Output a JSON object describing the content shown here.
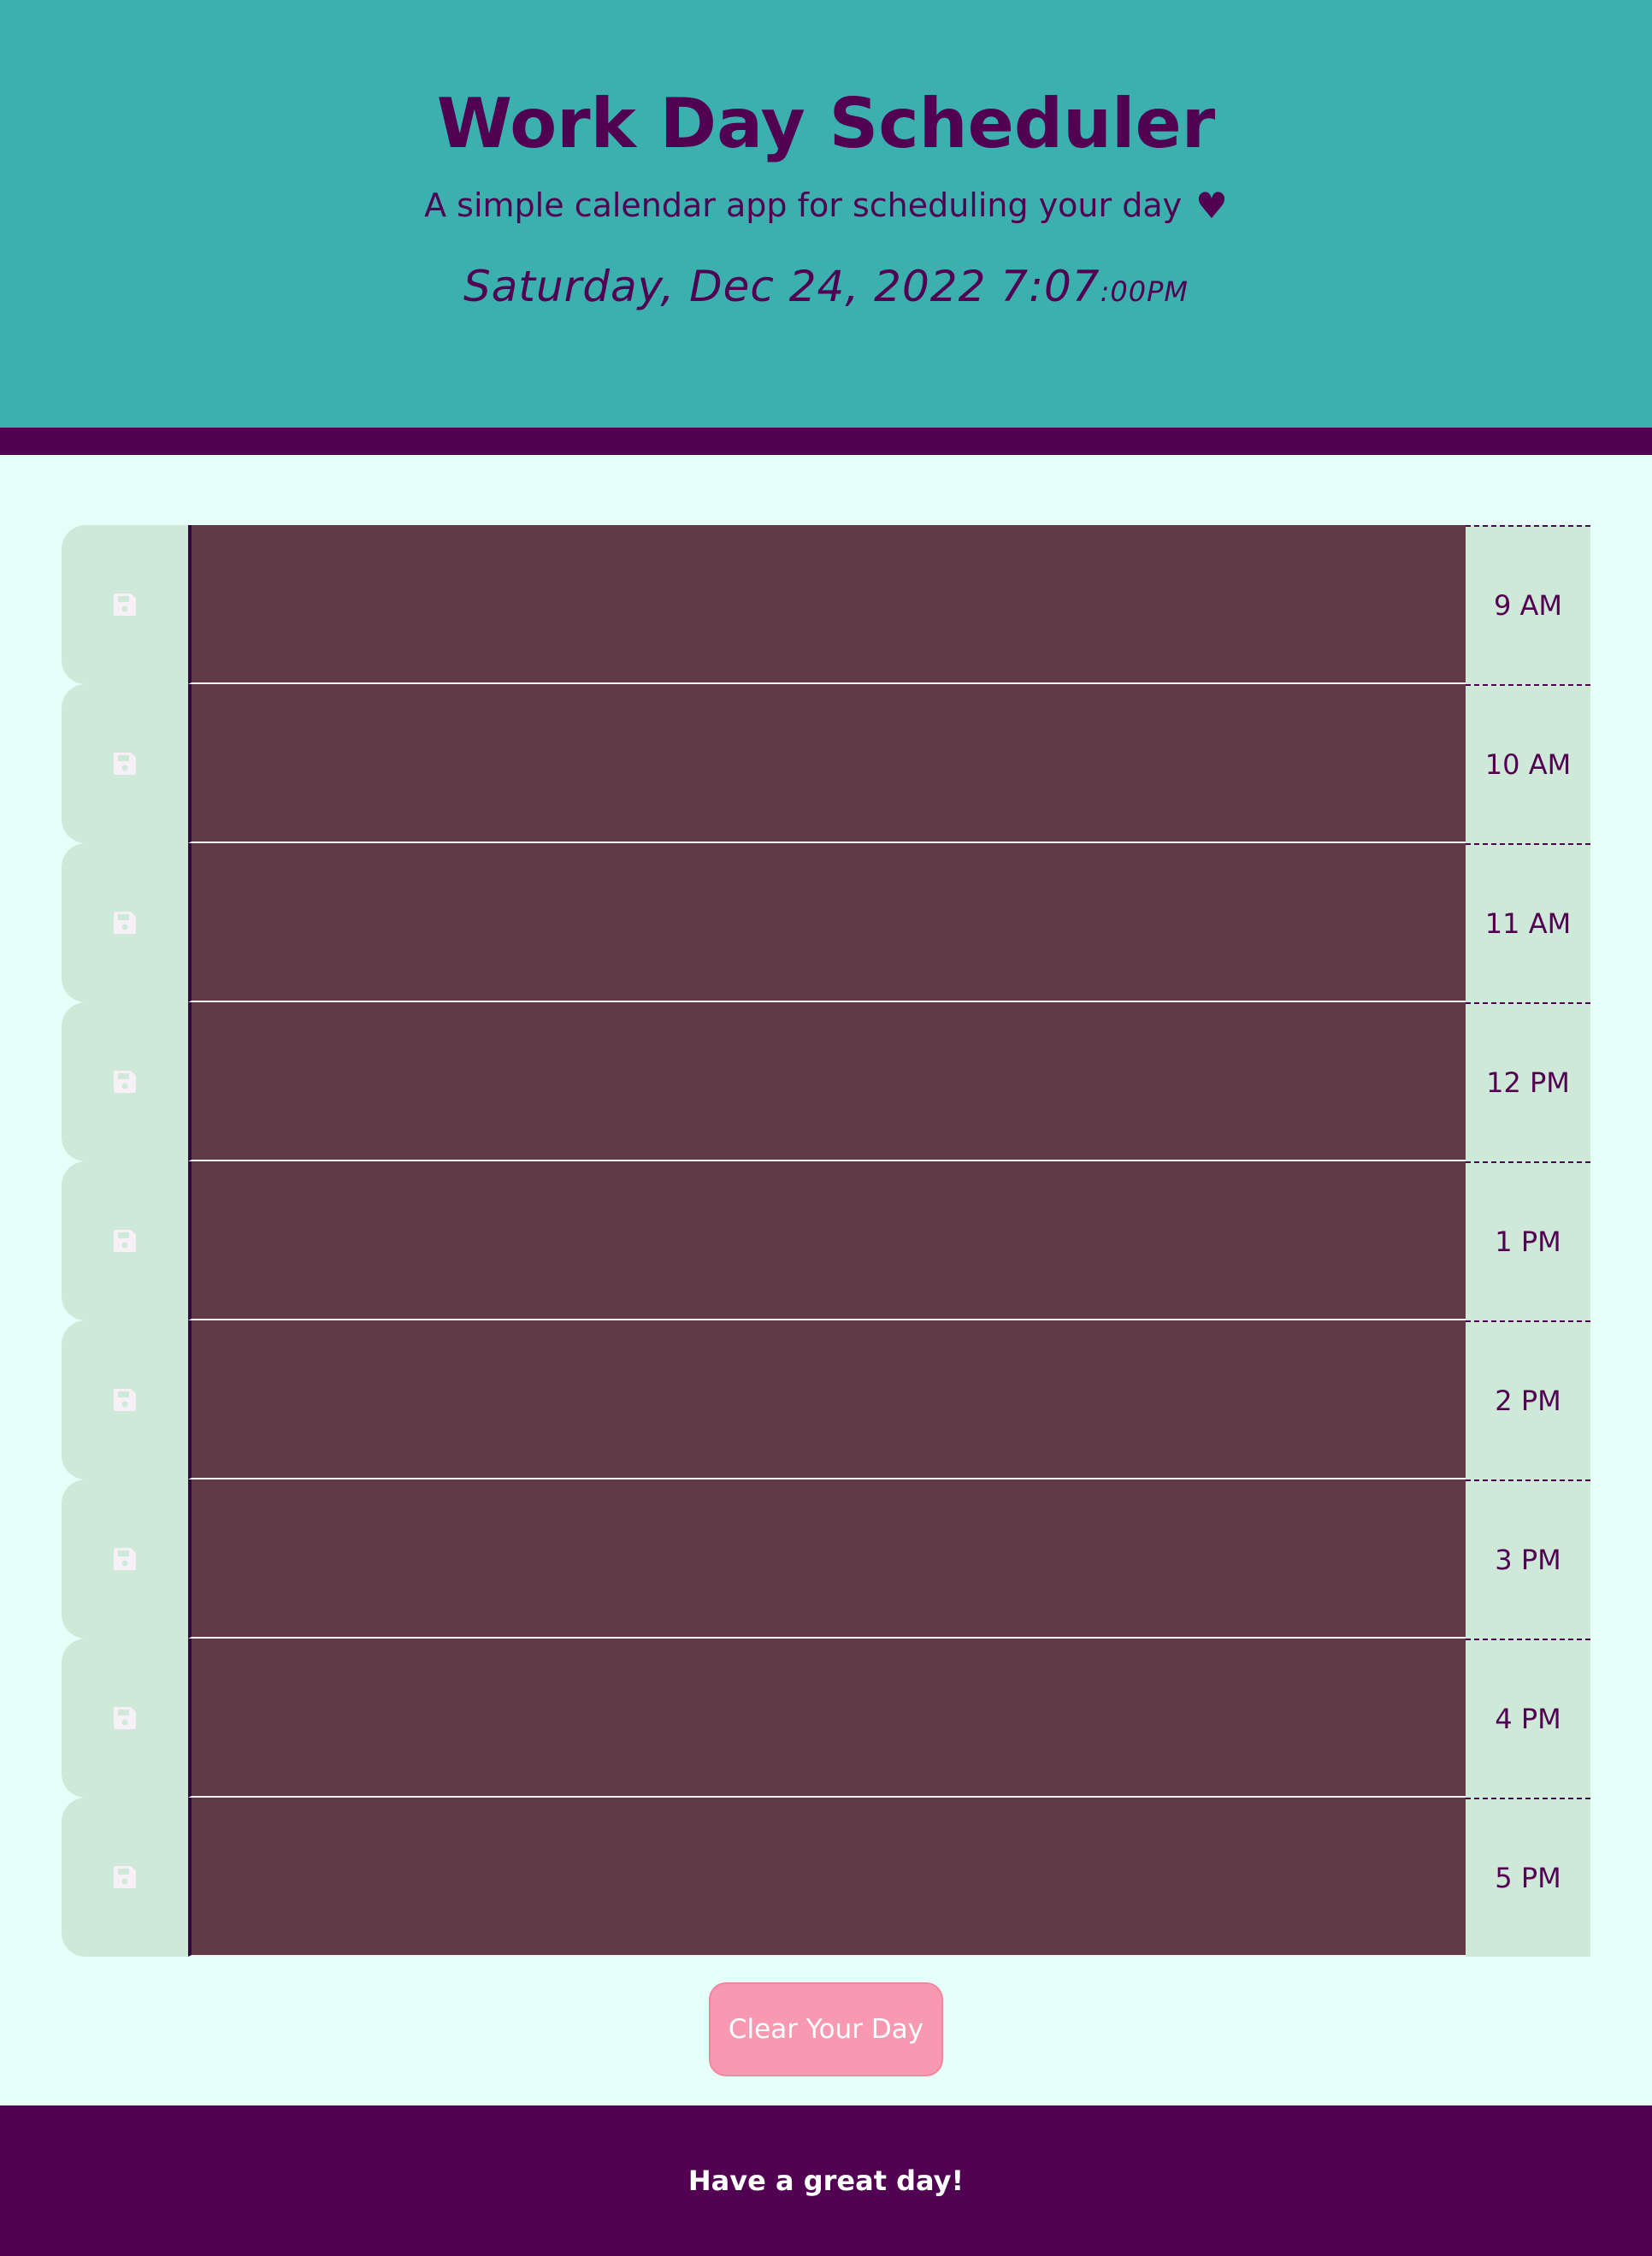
{
  "header": {
    "title": "Work Day Scheduler",
    "subtitle": "A simple calendar app for scheduling your day",
    "heart": "♥",
    "datetime_main": "Saturday, Dec 24, 2022 7:07",
    "datetime_seconds": ":00PM"
  },
  "rows": [
    {
      "hour": "9 AM",
      "text": ""
    },
    {
      "hour": "10 AM",
      "text": ""
    },
    {
      "hour": "11 AM",
      "text": ""
    },
    {
      "hour": "12 PM",
      "text": ""
    },
    {
      "hour": "1 PM",
      "text": ""
    },
    {
      "hour": "2 PM",
      "text": ""
    },
    {
      "hour": "3 PM",
      "text": ""
    },
    {
      "hour": "4 PM",
      "text": ""
    },
    {
      "hour": "5 PM",
      "text": ""
    }
  ],
  "icons": {
    "save": "floppy-disk-icon"
  },
  "actions": {
    "clear_label": "Clear Your Day"
  },
  "footer": {
    "text": "Have a great day!"
  },
  "colors": {
    "header_bg": "#3cafaf",
    "accent_purple": "#520052",
    "page_bg": "#e6fff9",
    "row_side_bg": "#cfe9d9",
    "textarea_past": "#603a46",
    "clear_button": "#f79ab1"
  }
}
